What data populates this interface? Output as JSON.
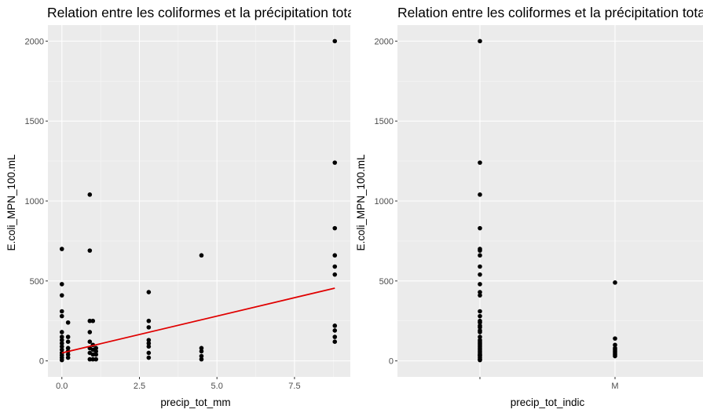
{
  "chart_data": [
    {
      "type": "scatter",
      "title": "Relation entre les coliformes et la précipitation totale",
      "xlabel": "precip_tot_mm",
      "ylabel": "E.coli_MPN_100.mL",
      "xlim": [
        -0.45,
        9.3
      ],
      "ylim": [
        -100,
        2100
      ],
      "xticks": [
        0,
        2.5,
        5,
        7.5
      ],
      "xtick_labels": [
        "0.0",
        "2.5",
        "5.0",
        "7.5"
      ],
      "yticks": [
        0,
        500,
        1000,
        1500,
        2000
      ],
      "ytick_labels": [
        "0",
        "500",
        "1000",
        "1500",
        "2000"
      ],
      "grid": true,
      "point_color": "#000000",
      "points": [
        [
          0,
          700
        ],
        [
          0,
          480
        ],
        [
          0,
          410
        ],
        [
          0,
          310
        ],
        [
          0,
          280
        ],
        [
          0,
          180
        ],
        [
          0,
          150
        ],
        [
          0,
          130
        ],
        [
          0,
          110
        ],
        [
          0,
          90
        ],
        [
          0,
          70
        ],
        [
          0,
          50
        ],
        [
          0,
          35
        ],
        [
          0,
          20
        ],
        [
          0,
          5
        ],
        [
          0.2,
          240
        ],
        [
          0.2,
          150
        ],
        [
          0.2,
          120
        ],
        [
          0.2,
          80
        ],
        [
          0.2,
          60
        ],
        [
          0.2,
          40
        ],
        [
          0.2,
          20
        ],
        [
          0.9,
          1040
        ],
        [
          0.9,
          690
        ],
        [
          0.9,
          250
        ],
        [
          0.9,
          180
        ],
        [
          0.9,
          120
        ],
        [
          0.9,
          80
        ],
        [
          0.9,
          50
        ],
        [
          0.9,
          10
        ],
        [
          1.0,
          250
        ],
        [
          1.0,
          100
        ],
        [
          1.0,
          70
        ],
        [
          1.0,
          40
        ],
        [
          1.0,
          10
        ],
        [
          1.1,
          80
        ],
        [
          1.1,
          60
        ],
        [
          1.1,
          40
        ],
        [
          1.1,
          10
        ],
        [
          2.8,
          430
        ],
        [
          2.8,
          250
        ],
        [
          2.8,
          210
        ],
        [
          2.8,
          130
        ],
        [
          2.8,
          110
        ],
        [
          2.8,
          90
        ],
        [
          2.8,
          50
        ],
        [
          2.8,
          20
        ],
        [
          4.5,
          660
        ],
        [
          4.5,
          80
        ],
        [
          4.5,
          60
        ],
        [
          4.5,
          30
        ],
        [
          4.5,
          10
        ],
        [
          8.8,
          2000
        ],
        [
          8.8,
          1240
        ],
        [
          8.8,
          830
        ],
        [
          8.8,
          660
        ],
        [
          8.8,
          590
        ],
        [
          8.8,
          540
        ],
        [
          8.8,
          220
        ],
        [
          8.8,
          190
        ],
        [
          8.8,
          150
        ],
        [
          8.8,
          120
        ]
      ],
      "fit_line": {
        "color": "#e00000",
        "x": [
          0,
          8.8
        ],
        "y": [
          50,
          455
        ]
      }
    },
    {
      "type": "scatter",
      "title": "Relation entre les coliformes et la précipitation totale",
      "xlabel": "precip_tot_indic",
      "ylabel": "E.coli_MPN_100.mL",
      "ylim": [
        -100,
        2100
      ],
      "categories": [
        "",
        "M"
      ],
      "yticks": [
        0,
        500,
        1000,
        1500,
        2000
      ],
      "ytick_labels": [
        "0",
        "500",
        "1000",
        "1500",
        "2000"
      ],
      "grid": true,
      "point_color": "#000000",
      "series": [
        {
          "category": 0,
          "values": [
            2000,
            1240,
            1040,
            830,
            700,
            690,
            660,
            590,
            540,
            480,
            430,
            410,
            310,
            280,
            250,
            240,
            220,
            210,
            190,
            180,
            150,
            130,
            120,
            110,
            100,
            90,
            80,
            70,
            60,
            50,
            40,
            35,
            30,
            20,
            10,
            5
          ]
        },
        {
          "category": 1,
          "values": [
            490,
            140,
            100,
            80,
            70,
            60,
            50,
            40,
            30
          ]
        }
      ]
    }
  ]
}
